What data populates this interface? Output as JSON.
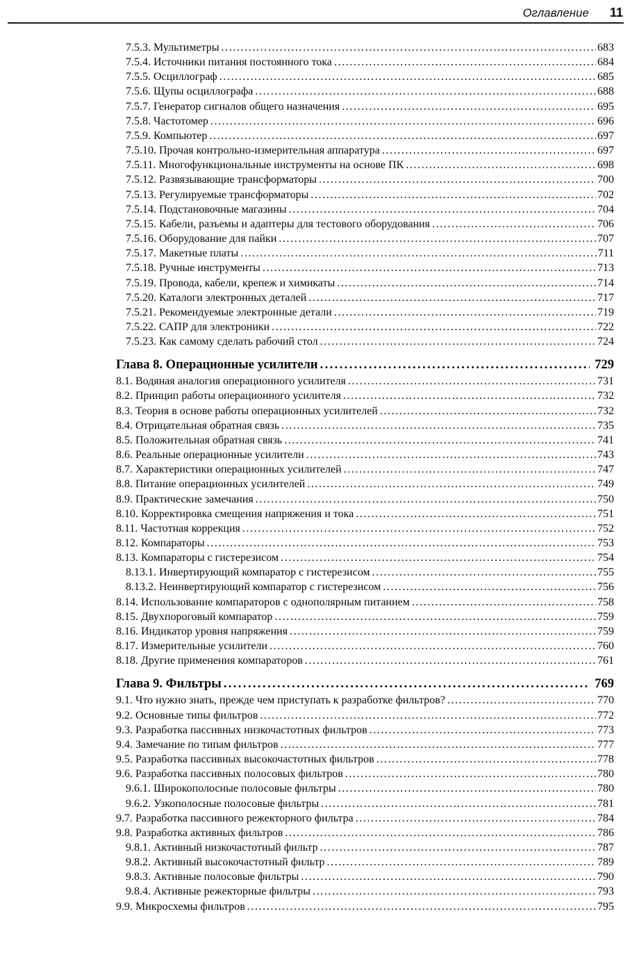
{
  "page": {
    "background_color": "#ffffff",
    "text_color": "#0a0a0a"
  },
  "header": {
    "title": "Оглавление",
    "page_number": "11"
  },
  "toc": [
    {
      "level": "sub",
      "text": "7.5.3. Мультиметры",
      "page": "683"
    },
    {
      "level": "sub",
      "text": "7.5.4. Источники питания постоянного тока",
      "page": "684"
    },
    {
      "level": "sub",
      "text": "7.5.5. Осциллограф",
      "page": "685"
    },
    {
      "level": "sub",
      "text": "7.5.6. Щупы осциллографа",
      "page": "688"
    },
    {
      "level": "sub",
      "text": "7.5.7. Генератор сигналов общего назначения",
      "page": "695"
    },
    {
      "level": "sub",
      "text": "7.5.8. Частотомер",
      "page": "696"
    },
    {
      "level": "sub",
      "text": "7.5.9. Компьютер",
      "page": "697"
    },
    {
      "level": "sub",
      "text": "7.5.10. Прочая контрольно-измерительная аппаратура",
      "page": "697"
    },
    {
      "level": "sub",
      "text": "7.5.11. Многофункциональные инструменты на основе ПК",
      "page": "698"
    },
    {
      "level": "sub",
      "text": "7.5.12. Развязывающие трансформаторы",
      "page": "700"
    },
    {
      "level": "sub",
      "text": "7.5.13. Регулируемые трансформаторы",
      "page": "702"
    },
    {
      "level": "sub",
      "text": "7.5.14. Подстановочные магазины",
      "page": "704"
    },
    {
      "level": "sub",
      "text": "7.5.15. Кабели, разъемы и адаптеры для тестового оборудования",
      "page": "706"
    },
    {
      "level": "sub",
      "text": "7.5.16. Оборудование для пайки",
      "page": "707"
    },
    {
      "level": "sub",
      "text": "7.5.17. Макетные платы",
      "page": "711"
    },
    {
      "level": "sub",
      "text": "7.5.18. Ручные инструменты",
      "page": "713"
    },
    {
      "level": "sub",
      "text": "7.5.19. Провода, кабели, крепеж и химикаты",
      "page": "714"
    },
    {
      "level": "sub",
      "text": "7.5.20. Каталоги электронных деталей",
      "page": "717"
    },
    {
      "level": "sub",
      "text": "7.5.21. Рекомендуемые электронные детали",
      "page": "719"
    },
    {
      "level": "sub",
      "text": "7.5.22. САПР для электроники",
      "page": "722"
    },
    {
      "level": "sub",
      "text": "7.5.23. Как самому сделать рабочий стол",
      "page": "724"
    },
    {
      "level": "chapter",
      "text": "Глава 8. Операционные усилители",
      "page": "729"
    },
    {
      "level": "section",
      "text": "8.1. Водяная аналогия операционного усилителя",
      "page": "731"
    },
    {
      "level": "section",
      "text": "8.2. Принцип работы операционного усилителя",
      "page": "732"
    },
    {
      "level": "section",
      "text": "8.3. Теория в основе работы операционных усилителей",
      "page": "732"
    },
    {
      "level": "section",
      "text": "8.4. Отрицательная обратная связь",
      "page": "735"
    },
    {
      "level": "section",
      "text": "8.5. Положительная обратная связь",
      "page": "741"
    },
    {
      "level": "section",
      "text": "8.6. Реальные операционные усилители",
      "page": "743"
    },
    {
      "level": "section",
      "text": "8.7. Характеристики операционных усилителей",
      "page": "747"
    },
    {
      "level": "section",
      "text": "8.8. Питание операционных усилителей",
      "page": "749"
    },
    {
      "level": "section",
      "text": "8.9. Практические замечания",
      "page": "750"
    },
    {
      "level": "section",
      "text": "8.10. Корректировка смещения напряжения и тока",
      "page": "751"
    },
    {
      "level": "section",
      "text": "8.11. Частотная коррекция",
      "page": "752"
    },
    {
      "level": "section",
      "text": "8.12. Компараторы",
      "page": "753"
    },
    {
      "level": "section",
      "text": "8.13. Компараторы с гистерезисом",
      "page": "754"
    },
    {
      "level": "sub",
      "text": "8.13.1. Инвертирующий компаратор с гистерезисом",
      "page": "755"
    },
    {
      "level": "sub",
      "text": "8.13.2. Неинвертирующий компаратор с гистерезисом",
      "page": "756"
    },
    {
      "level": "section",
      "text": "8.14. Использование компараторов с однополярным питанием",
      "page": "758"
    },
    {
      "level": "section",
      "text": "8.15. Двухпороговый компаратор",
      "page": "759"
    },
    {
      "level": "section",
      "text": "8.16. Индикатор уровня напряжения",
      "page": "759"
    },
    {
      "level": "section",
      "text": "8.17. Измерительные усилители",
      "page": "760"
    },
    {
      "level": "section",
      "text": "8.18. Другие применения компараторов",
      "page": "761"
    },
    {
      "level": "chapter",
      "text": "Глава 9. Фильтры",
      "page": "769"
    },
    {
      "level": "section",
      "text": "9.1. Что нужно знать, прежде чем приступать к разработке фильтров?",
      "page": "770"
    },
    {
      "level": "section",
      "text": "9.2. Основные типы фильтров",
      "page": "772"
    },
    {
      "level": "section",
      "text": "9.3. Разработка пассивных низкочастотных фильтров",
      "page": "773"
    },
    {
      "level": "section",
      "text": "9.4. Замечание по типам фильтров",
      "page": "777"
    },
    {
      "level": "section",
      "text": "9.5. Разработка пассивных высокочастотных фильтров",
      "page": "778"
    },
    {
      "level": "section",
      "text": "9.6. Разработка пассивных полосовых фильтров",
      "page": "780"
    },
    {
      "level": "sub",
      "text": "9.6.1. Широкополосные полосовые фильтры",
      "page": "780"
    },
    {
      "level": "sub",
      "text": "9.6.2. Узкополосные полосовые фильтры",
      "page": "781"
    },
    {
      "level": "section",
      "text": "9.7. Разработка пассивного режекторного фильтра",
      "page": "784"
    },
    {
      "level": "section",
      "text": "9.8. Разработка активных фильтров",
      "page": "786"
    },
    {
      "level": "sub",
      "text": "9.8.1. Активный низкочастотный фильтр",
      "page": "787"
    },
    {
      "level": "sub",
      "text": "9.8.2. Активный высокочастотный фильтр",
      "page": "789"
    },
    {
      "level": "sub",
      "text": "9.8.3. Активные полосовые фильтры",
      "page": "790"
    },
    {
      "level": "sub",
      "text": "9.8.4. Активные режекторные фильтры",
      "page": "793"
    },
    {
      "level": "section",
      "text": "9.9. Микросхемы фильтров",
      "page": "795"
    }
  ]
}
